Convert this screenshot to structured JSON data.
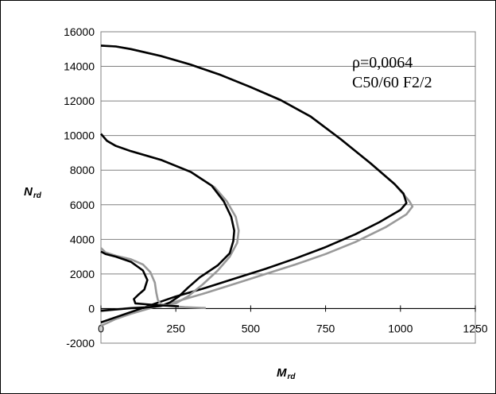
{
  "chart_data": {
    "type": "line",
    "title": "",
    "xlabel": {
      "main": "M",
      "sub": "rd"
    },
    "ylabel": {
      "main": "N",
      "sub": "rd"
    },
    "xlim": [
      0,
      1250
    ],
    "ylim": [
      -2000,
      16000
    ],
    "xticks": [
      0,
      250,
      500,
      750,
      1000,
      1250
    ],
    "yticks": [
      -2000,
      0,
      2000,
      4000,
      6000,
      8000,
      10000,
      12000,
      14000,
      16000
    ],
    "x_tick_labels": [
      "0",
      "250",
      "500",
      "750",
      "1000",
      "1250"
    ],
    "y_tick_labels": [
      "-2000",
      "0",
      "2000",
      "4000",
      "6000",
      "8000",
      "10000",
      "12000",
      "14000",
      "16000"
    ],
    "grid": "horizontal",
    "legend": "none",
    "annotations": [
      "ρ=0,0064",
      "C50/60 F2/2"
    ],
    "series": [
      {
        "color": "#999999",
        "points": [
          [
            0,
            15200
          ],
          [
            50,
            15150
          ],
          [
            100,
            15000
          ],
          [
            200,
            14600
          ],
          [
            300,
            14100
          ],
          [
            400,
            13500
          ],
          [
            500,
            12800
          ],
          [
            600,
            12050
          ],
          [
            700,
            11100
          ],
          [
            800,
            9800
          ],
          [
            900,
            8400
          ],
          [
            980,
            7200
          ],
          [
            1030,
            6200
          ],
          [
            1040,
            5900
          ],
          [
            1020,
            5450
          ],
          [
            950,
            4700
          ],
          [
            850,
            3850
          ],
          [
            750,
            3150
          ],
          [
            650,
            2550
          ],
          [
            550,
            2000
          ],
          [
            450,
            1450
          ],
          [
            350,
            900
          ],
          [
            250,
            400
          ],
          [
            180,
            100
          ],
          [
            100,
            -300
          ],
          [
            50,
            -600
          ],
          [
            0,
            -1000
          ]
        ]
      },
      {
        "color": "#000000",
        "points": [
          [
            0,
            15200
          ],
          [
            50,
            15150
          ],
          [
            100,
            15000
          ],
          [
            200,
            14600
          ],
          [
            300,
            14100
          ],
          [
            400,
            13500
          ],
          [
            500,
            12800
          ],
          [
            600,
            12050
          ],
          [
            700,
            11100
          ],
          [
            800,
            9800
          ],
          [
            900,
            8400
          ],
          [
            980,
            7200
          ],
          [
            1010,
            6650
          ],
          [
            1020,
            6100
          ],
          [
            1000,
            5700
          ],
          [
            930,
            5000
          ],
          [
            850,
            4300
          ],
          [
            750,
            3550
          ],
          [
            650,
            2900
          ],
          [
            550,
            2300
          ],
          [
            450,
            1750
          ],
          [
            350,
            1200
          ],
          [
            250,
            700
          ],
          [
            200,
            400
          ],
          [
            150,
            100
          ],
          [
            100,
            -200
          ],
          [
            50,
            -500
          ],
          [
            0,
            -800
          ]
        ]
      },
      {
        "color": "#999999",
        "points": [
          [
            0,
            10100
          ],
          [
            20,
            9700
          ],
          [
            50,
            9400
          ],
          [
            100,
            9100
          ],
          [
            200,
            8600
          ],
          [
            300,
            7900
          ],
          [
            380,
            7000
          ],
          [
            420,
            6200
          ],
          [
            450,
            5300
          ],
          [
            460,
            4500
          ],
          [
            455,
            3800
          ],
          [
            430,
            3000
          ],
          [
            390,
            2200
          ],
          [
            340,
            1400
          ],
          [
            290,
            700
          ],
          [
            250,
            300
          ],
          [
            200,
            150
          ],
          [
            150,
            80
          ],
          [
            100,
            40
          ],
          [
            0,
            -150
          ]
        ]
      },
      {
        "color": "#000000",
        "points": [
          [
            0,
            10100
          ],
          [
            20,
            9700
          ],
          [
            50,
            9400
          ],
          [
            100,
            9100
          ],
          [
            200,
            8600
          ],
          [
            300,
            7900
          ],
          [
            370,
            7100
          ],
          [
            410,
            6200
          ],
          [
            435,
            5300
          ],
          [
            445,
            4500
          ],
          [
            442,
            3900
          ],
          [
            430,
            3200
          ],
          [
            390,
            2500
          ],
          [
            330,
            1800
          ],
          [
            290,
            1200
          ],
          [
            260,
            700
          ],
          [
            230,
            350
          ],
          [
            200,
            150
          ],
          [
            150,
            60
          ],
          [
            100,
            20
          ],
          [
            0,
            -120
          ]
        ]
      },
      {
        "color": "#999999",
        "points": [
          [
            0,
            3500
          ],
          [
            15,
            3250
          ],
          [
            50,
            3050
          ],
          [
            100,
            2850
          ],
          [
            140,
            2550
          ],
          [
            165,
            2100
          ],
          [
            180,
            1500
          ],
          [
            185,
            900
          ],
          [
            190,
            500
          ],
          [
            200,
            250
          ],
          [
            230,
            150
          ],
          [
            280,
            80
          ],
          [
            350,
            30
          ]
        ]
      },
      {
        "color": "#000000",
        "points": [
          [
            0,
            3300
          ],
          [
            15,
            3150
          ],
          [
            50,
            3000
          ],
          [
            100,
            2700
          ],
          [
            140,
            2200
          ],
          [
            155,
            1650
          ],
          [
            145,
            1100
          ],
          [
            125,
            800
          ],
          [
            110,
            550
          ],
          [
            115,
            300
          ],
          [
            150,
            250
          ],
          [
            200,
            180
          ],
          [
            260,
            130
          ]
        ]
      }
    ]
  }
}
